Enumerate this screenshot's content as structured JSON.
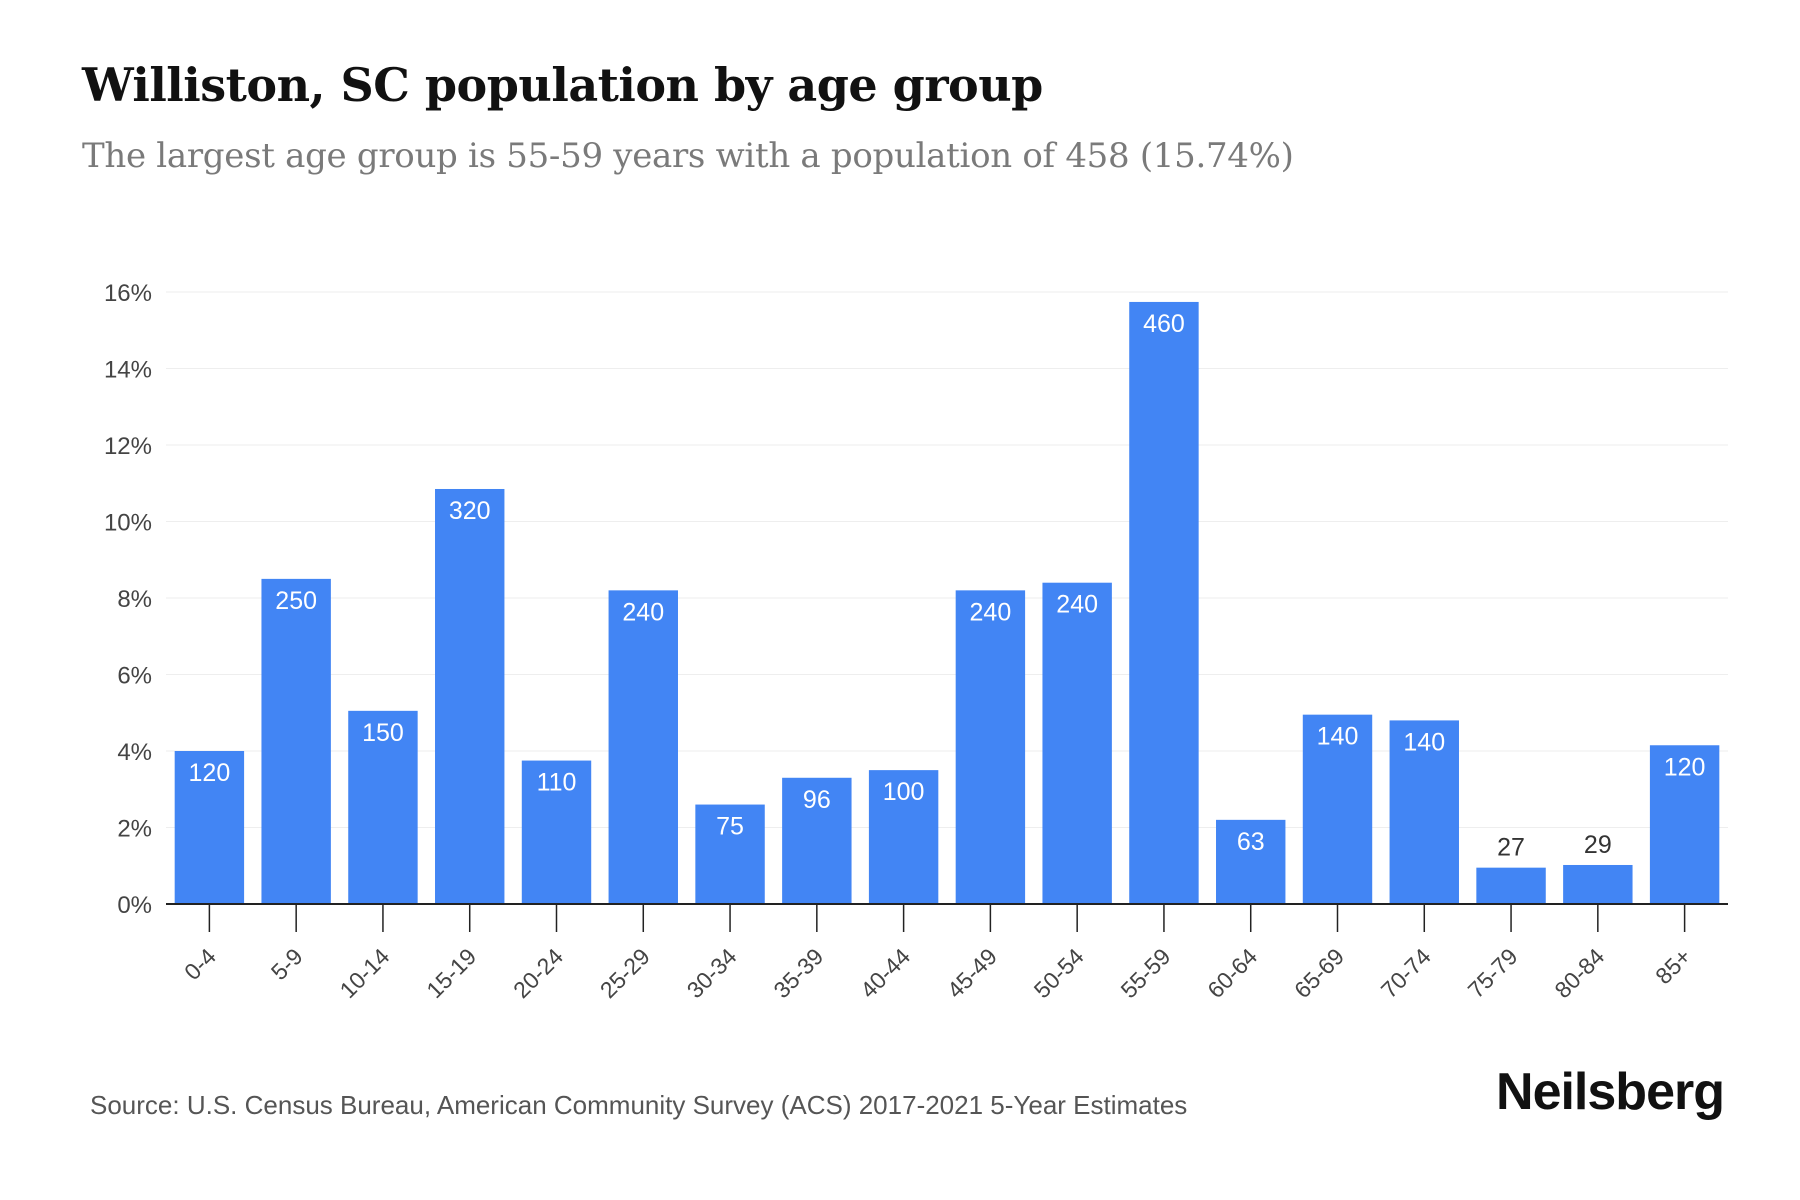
{
  "title": "Williston, SC population by age group",
  "subtitle": "The largest age group is 55-59 years with a population of 458 (15.74%)",
  "source": "Source: U.S. Census Bureau, American Community Survey (ACS) 2017-2021 5-Year Estimates",
  "brand": "Neilsberg",
  "colors": {
    "bar": "#4285f4",
    "grid": "#eeeeee",
    "axis": "#222222",
    "tick_text": "#444444",
    "label_inside": "#ffffff",
    "label_outside": "#333333"
  },
  "chart_data": {
    "type": "bar",
    "categories": [
      "0-4",
      "5-9",
      "10-14",
      "15-19",
      "20-24",
      "25-29",
      "30-34",
      "35-39",
      "40-44",
      "45-49",
      "50-54",
      "55-59",
      "60-64",
      "65-69",
      "70-74",
      "75-79",
      "80-84",
      "85+"
    ],
    "values": [
      4.0,
      8.5,
      5.05,
      10.85,
      3.75,
      8.2,
      2.6,
      3.3,
      3.5,
      8.2,
      8.4,
      15.74,
      2.2,
      4.95,
      4.8,
      0.95,
      1.02,
      4.15
    ],
    "labels": [
      "120",
      "250",
      "150",
      "320",
      "110",
      "240",
      "75",
      "96",
      "100",
      "240",
      "240",
      "460",
      "63",
      "140",
      "140",
      "27",
      "29",
      "120"
    ],
    "ylim": [
      0,
      16
    ],
    "yticks": [
      0,
      2,
      4,
      6,
      8,
      10,
      12,
      14,
      16
    ],
    "ytick_labels": [
      "0%",
      "2%",
      "4%",
      "6%",
      "8%",
      "10%",
      "12%",
      "14%",
      "16%"
    ],
    "grid": true
  }
}
